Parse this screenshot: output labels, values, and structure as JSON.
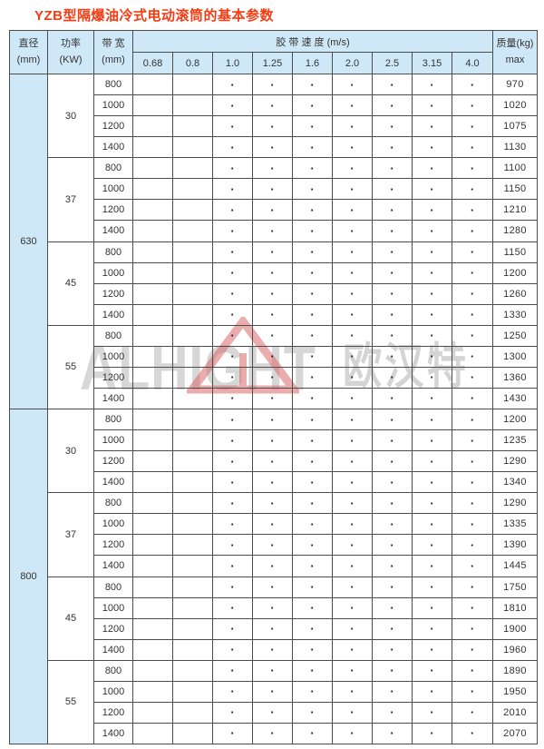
{
  "page": {
    "title": "YZB型隔爆油冷式电动滚筒的基本参数"
  },
  "colors": {
    "title_red": "#f63b12",
    "header_blue": "#cfe8f7",
    "grid_line": "#4d4d4d",
    "watermark_gray": "#d7d7d7",
    "watermark_red": "#d96a6a"
  },
  "watermark": {
    "latin": "ALHIGHT",
    "chinese": "欧汉特"
  },
  "table": {
    "dot": "·",
    "header": {
      "diameter": {
        "line1": "直径",
        "line2": "(mm)"
      },
      "power": {
        "line1": "功率",
        "line2": "(KW)"
      },
      "width": {
        "line1": "带 宽",
        "line2": "(mm)"
      },
      "speed_title": "胶 带 速 度 (m/s)",
      "speeds": [
        "0.68",
        "0.8",
        "1.0",
        "1.25",
        "1.6",
        "2.0",
        "2.5",
        "3.15",
        "4.0"
      ],
      "mass": {
        "line1": "质量(kg)",
        "line2": "max"
      }
    },
    "groups": [
      {
        "diameter": "630",
        "blocks": [
          {
            "power": "30",
            "rows": [
              {
                "width": "800",
                "dots": [
                  0,
                  0,
                  1,
                  1,
                  1,
                  1,
                  1,
                  1,
                  1
                ],
                "mass": "970"
              },
              {
                "width": "1000",
                "dots": [
                  0,
                  0,
                  1,
                  1,
                  1,
                  1,
                  1,
                  1,
                  1
                ],
                "mass": "1020"
              },
              {
                "width": "1200",
                "dots": [
                  0,
                  0,
                  1,
                  1,
                  1,
                  1,
                  1,
                  1,
                  1
                ],
                "mass": "1075"
              },
              {
                "width": "1400",
                "dots": [
                  0,
                  0,
                  1,
                  1,
                  1,
                  1,
                  1,
                  1,
                  1
                ],
                "mass": "1130"
              }
            ]
          },
          {
            "power": "37",
            "rows": [
              {
                "width": "800",
                "dots": [
                  0,
                  0,
                  1,
                  1,
                  1,
                  1,
                  1,
                  1,
                  1
                ],
                "mass": "1100"
              },
              {
                "width": "1000",
                "dots": [
                  0,
                  0,
                  1,
                  1,
                  1,
                  1,
                  1,
                  1,
                  1
                ],
                "mass": "1150"
              },
              {
                "width": "1200",
                "dots": [
                  0,
                  0,
                  1,
                  1,
                  1,
                  1,
                  1,
                  1,
                  1
                ],
                "mass": "1210"
              },
              {
                "width": "1400",
                "dots": [
                  0,
                  0,
                  1,
                  1,
                  1,
                  1,
                  1,
                  1,
                  1
                ],
                "mass": "1280"
              }
            ]
          },
          {
            "power": "45",
            "rows": [
              {
                "width": "800",
                "dots": [
                  0,
                  0,
                  1,
                  1,
                  1,
                  1,
                  1,
                  1,
                  1
                ],
                "mass": "1150"
              },
              {
                "width": "1000",
                "dots": [
                  0,
                  0,
                  1,
                  1,
                  1,
                  1,
                  1,
                  1,
                  1
                ],
                "mass": "1200"
              },
              {
                "width": "1200",
                "dots": [
                  0,
                  0,
                  1,
                  1,
                  1,
                  1,
                  1,
                  1,
                  1
                ],
                "mass": "1260"
              },
              {
                "width": "1400",
                "dots": [
                  0,
                  0,
                  1,
                  1,
                  1,
                  1,
                  1,
                  1,
                  1
                ],
                "mass": "1330"
              }
            ]
          },
          {
            "power": "55",
            "rows": [
              {
                "width": "800",
                "dots": [
                  0,
                  0,
                  1,
                  1,
                  1,
                  1,
                  1,
                  1,
                  1
                ],
                "mass": "1250"
              },
              {
                "width": "1000",
                "dots": [
                  0,
                  0,
                  1,
                  1,
                  1,
                  1,
                  1,
                  1,
                  1
                ],
                "mass": "1300"
              },
              {
                "width": "1200",
                "dots": [
                  0,
                  0,
                  1,
                  1,
                  1,
                  1,
                  1,
                  1,
                  1
                ],
                "mass": "1360"
              },
              {
                "width": "1400",
                "dots": [
                  0,
                  0,
                  1,
                  1,
                  1,
                  1,
                  1,
                  1,
                  1
                ],
                "mass": "1430"
              }
            ]
          }
        ]
      },
      {
        "diameter": "800",
        "blocks": [
          {
            "power": "30",
            "rows": [
              {
                "width": "800",
                "dots": [
                  0,
                  0,
                  1,
                  1,
                  1,
                  1,
                  1,
                  1,
                  1
                ],
                "mass": "1200"
              },
              {
                "width": "1000",
                "dots": [
                  0,
                  0,
                  1,
                  1,
                  1,
                  1,
                  1,
                  1,
                  1
                ],
                "mass": "1235"
              },
              {
                "width": "1200",
                "dots": [
                  0,
                  0,
                  1,
                  1,
                  1,
                  1,
                  1,
                  1,
                  1
                ],
                "mass": "1290"
              },
              {
                "width": "1400",
                "dots": [
                  0,
                  0,
                  1,
                  1,
                  1,
                  1,
                  1,
                  1,
                  1
                ],
                "mass": "1340"
              }
            ]
          },
          {
            "power": "37",
            "rows": [
              {
                "width": "800",
                "dots": [
                  0,
                  0,
                  1,
                  1,
                  1,
                  1,
                  1,
                  1,
                  1
                ],
                "mass": "1290"
              },
              {
                "width": "1000",
                "dots": [
                  0,
                  0,
                  1,
                  1,
                  1,
                  1,
                  1,
                  1,
                  1
                ],
                "mass": "1335"
              },
              {
                "width": "1200",
                "dots": [
                  0,
                  0,
                  1,
                  1,
                  1,
                  1,
                  1,
                  1,
                  1
                ],
                "mass": "1390"
              },
              {
                "width": "1400",
                "dots": [
                  0,
                  0,
                  1,
                  1,
                  1,
                  1,
                  1,
                  1,
                  1
                ],
                "mass": "1445"
              }
            ]
          },
          {
            "power": "45",
            "rows": [
              {
                "width": "800",
                "dots": [
                  0,
                  0,
                  1,
                  1,
                  1,
                  1,
                  1,
                  1,
                  1
                ],
                "mass": "1750"
              },
              {
                "width": "1000",
                "dots": [
                  0,
                  0,
                  1,
                  1,
                  1,
                  1,
                  1,
                  1,
                  1
                ],
                "mass": "1810"
              },
              {
                "width": "1200",
                "dots": [
                  0,
                  0,
                  1,
                  1,
                  1,
                  1,
                  1,
                  1,
                  1
                ],
                "mass": "1900"
              },
              {
                "width": "1400",
                "dots": [
                  0,
                  0,
                  1,
                  1,
                  1,
                  1,
                  1,
                  1,
                  1
                ],
                "mass": "1960"
              }
            ]
          },
          {
            "power": "55",
            "rows": [
              {
                "width": "800",
                "dots": [
                  0,
                  0,
                  1,
                  1,
                  1,
                  1,
                  1,
                  1,
                  1
                ],
                "mass": "1890"
              },
              {
                "width": "1000",
                "dots": [
                  0,
                  0,
                  1,
                  1,
                  1,
                  1,
                  1,
                  1,
                  1
                ],
                "mass": "1950"
              },
              {
                "width": "1200",
                "dots": [
                  0,
                  0,
                  1,
                  1,
                  1,
                  1,
                  1,
                  1,
                  1
                ],
                "mass": "2010"
              },
              {
                "width": "1400",
                "dots": [
                  0,
                  0,
                  1,
                  1,
                  1,
                  1,
                  1,
                  1,
                  1
                ],
                "mass": "2070"
              }
            ]
          }
        ]
      }
    ]
  }
}
